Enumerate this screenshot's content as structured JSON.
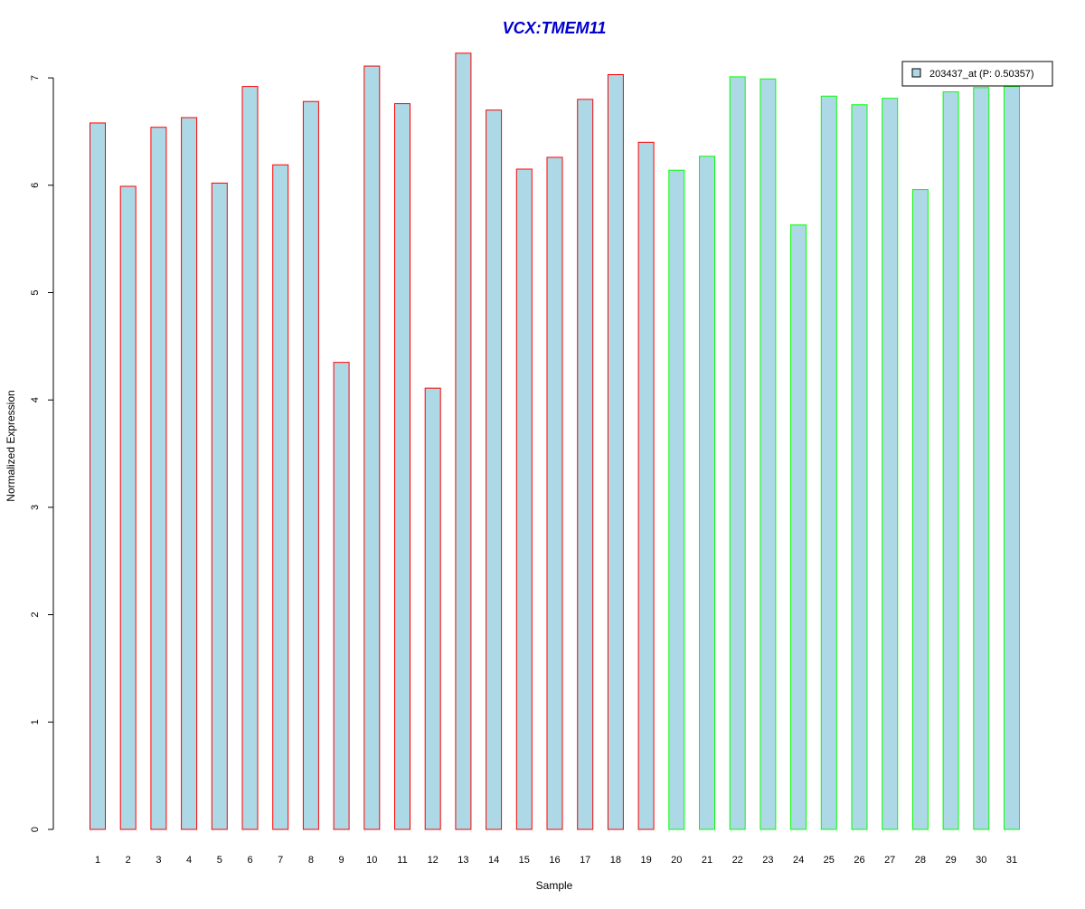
{
  "chart_data": {
    "type": "bar",
    "title": "VCX:TMEM11",
    "xlabel": "Sample",
    "ylabel": "Normalized Expression",
    "categories": [
      "1",
      "2",
      "3",
      "4",
      "5",
      "6",
      "7",
      "8",
      "9",
      "10",
      "11",
      "12",
      "13",
      "14",
      "15",
      "16",
      "17",
      "18",
      "19",
      "20",
      "21",
      "22",
      "23",
      "24",
      "25",
      "26",
      "27",
      "28",
      "29",
      "30",
      "31"
    ],
    "series": [
      {
        "name": "203437_at (P: 0.50357)",
        "values": [
          6.58,
          5.99,
          6.54,
          6.63,
          6.02,
          6.92,
          6.19,
          6.78,
          4.35,
          7.11,
          6.76,
          4.11,
          7.23,
          6.7,
          6.15,
          6.26,
          6.8,
          7.03,
          6.4,
          6.14,
          6.27,
          7.01,
          6.99,
          5.63,
          6.83,
          6.75,
          6.81,
          5.96,
          6.87,
          6.91,
          6.92
        ]
      }
    ],
    "groups": [
      {
        "from": 1,
        "to": 19,
        "border_color": "#ff0000"
      },
      {
        "from": 20,
        "to": 31,
        "border_color": "#00ff00"
      }
    ],
    "ylim": [
      0,
      7
    ],
    "yticks": [
      "0",
      "1",
      "2",
      "3",
      "4",
      "5",
      "6",
      "7"
    ],
    "grid": false,
    "legend_position": "top-right",
    "colors": {
      "bar_fill": "#add8e6",
      "title": "#0000cd",
      "axis": "#000000"
    }
  }
}
